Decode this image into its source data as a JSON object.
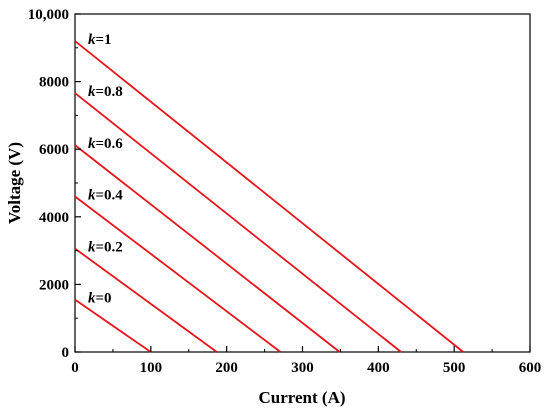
{
  "chart_data": {
    "type": "line",
    "xlabel": "Current (A)",
    "ylabel": "Voltage (V)",
    "xlim": [
      0,
      600
    ],
    "ylim": [
      0,
      10000
    ],
    "x_ticks": [
      "0",
      "100",
      "200",
      "300",
      "400",
      "500",
      "600"
    ],
    "y_ticks": [
      "0",
      "2000",
      "4000",
      "6000",
      "8000",
      "10,000"
    ],
    "x_tick_values": [
      0,
      100,
      200,
      300,
      400,
      500,
      600
    ],
    "y_tick_values": [
      0,
      2000,
      4000,
      6000,
      8000,
      10000
    ],
    "grid": false,
    "line_color": "#e8141b",
    "series": [
      {
        "label_prefix": "k",
        "label_value": "=0",
        "points": [
          [
            0,
            1550
          ],
          [
            100,
            0
          ]
        ]
      },
      {
        "label_prefix": "k",
        "label_value": "=0.2",
        "points": [
          [
            0,
            3060
          ],
          [
            187,
            0
          ]
        ]
      },
      {
        "label_prefix": "k",
        "label_value": "=0.4",
        "points": [
          [
            0,
            4600
          ],
          [
            271,
            0
          ]
        ]
      },
      {
        "label_prefix": "k",
        "label_value": "=0.6",
        "points": [
          [
            0,
            6120
          ],
          [
            349,
            0
          ]
        ]
      },
      {
        "label_prefix": "k",
        "label_value": "=0.8",
        "points": [
          [
            0,
            7660
          ],
          [
            430,
            0
          ]
        ]
      },
      {
        "label_prefix": "k",
        "label_value": "=1",
        "points": [
          [
            0,
            9200
          ],
          [
            512,
            0
          ]
        ]
      }
    ]
  }
}
